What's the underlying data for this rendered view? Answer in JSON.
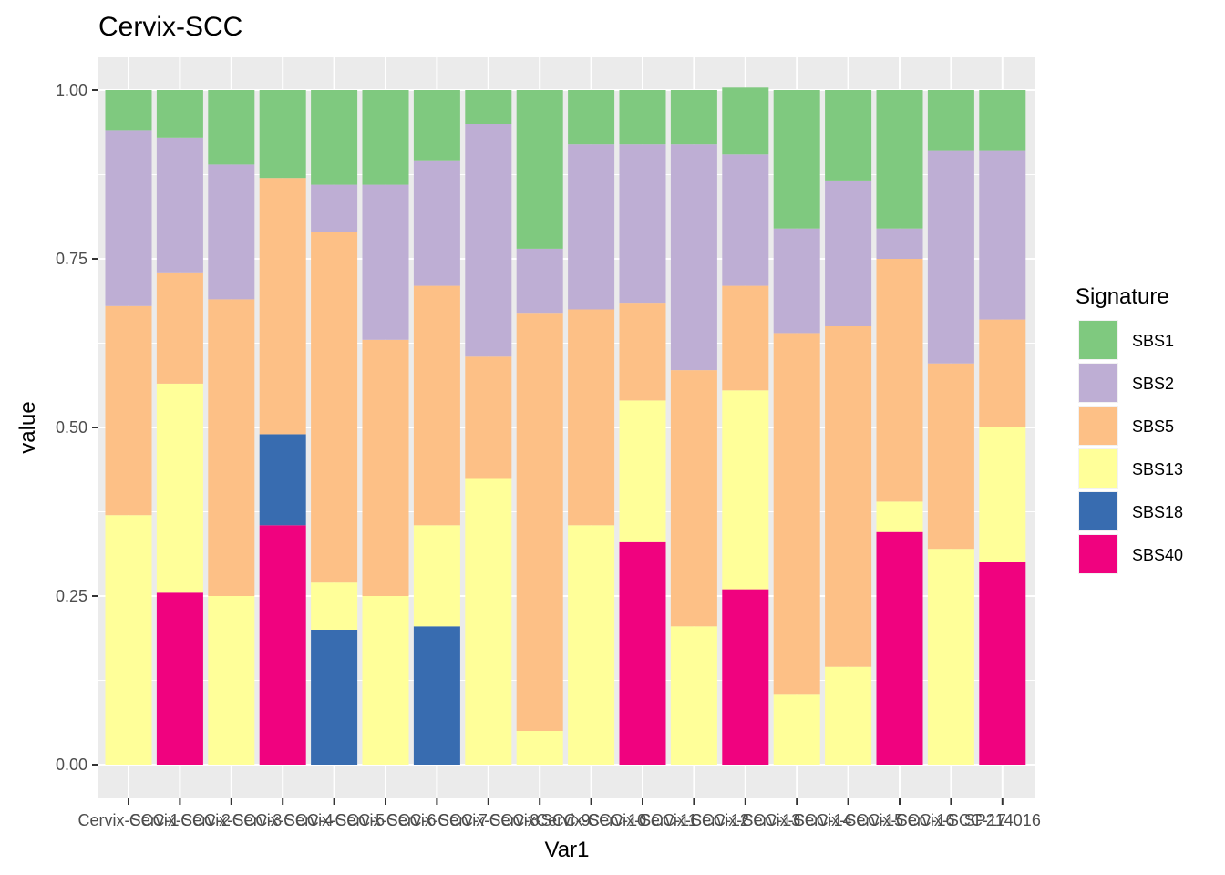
{
  "chart_data": {
    "type": "bar",
    "stacked": true,
    "title": "Cervix-SCC",
    "xlabel": "Var1",
    "ylabel": "value",
    "ylim": [
      0,
      1
    ],
    "yticks": [
      "0.00",
      "0.25",
      "0.50",
      "0.75",
      "1.00"
    ],
    "grid": true,
    "legend": {
      "title": "Signature",
      "placement": "right",
      "entries": [
        "SBS1",
        "SBS2",
        "SBS5",
        "SBS13",
        "SBS18",
        "SBS40"
      ]
    },
    "categories": [
      "Cervix-SCC-1",
      "Cervix-SCC-2",
      "Cervix-SCC-3",
      "Cervix-SCC-4",
      "Cervix-SCC-5",
      "Cervix-SCC-6",
      "Cervix-SCC-7",
      "Cervix-SCC-8",
      "Cervix-SCC-9",
      "Cervix-SCC-10",
      "Cervix-SCC-11",
      "Cervix-SCC-12",
      "Cervix-SCC-13",
      "Cervix-SCC-14",
      "Cervix-SCC-15",
      "Cervix-SCC-16",
      "Cervix-SCC-17",
      "SP214016"
    ],
    "stack_order": [
      "SBS40",
      "SBS18",
      "SBS13",
      "SBS5",
      "SBS2",
      "SBS1"
    ],
    "series": [
      {
        "name": "SBS1",
        "color": "#7FC97F",
        "values": [
          0.06,
          0.07,
          0.11,
          0.13,
          0.14,
          0.14,
          0.105,
          0.05,
          0.235,
          0.08,
          0.08,
          0.08,
          0.1,
          0.205,
          0.135,
          0.205,
          0.09,
          0.09
        ]
      },
      {
        "name": "SBS2",
        "color": "#BEAED4",
        "values": [
          0.26,
          0.2,
          0.2,
          0.0,
          0.07,
          0.23,
          0.185,
          0.345,
          0.095,
          0.245,
          0.235,
          0.335,
          0.195,
          0.155,
          0.215,
          0.045,
          0.315,
          0.25
        ]
      },
      {
        "name": "SBS5",
        "color": "#FDC086",
        "values": [
          0.31,
          0.165,
          0.44,
          0.38,
          0.52,
          0.38,
          0.355,
          0.18,
          0.62,
          0.32,
          0.145,
          0.38,
          0.155,
          0.535,
          0.505,
          0.36,
          0.275,
          0.16
        ]
      },
      {
        "name": "SBS13",
        "color": "#FFFF99",
        "values": [
          0.37,
          0.31,
          0.25,
          0.0,
          0.07,
          0.25,
          0.15,
          0.425,
          0.05,
          0.355,
          0.21,
          0.205,
          0.295,
          0.105,
          0.145,
          0.045,
          0.32,
          0.2
        ]
      },
      {
        "name": "SBS18",
        "color": "#386CB0",
        "values": [
          0.0,
          0.0,
          0.0,
          0.135,
          0.2,
          0.0,
          0.205,
          0.0,
          0.0,
          0.0,
          0.0,
          0.0,
          0.0,
          0.0,
          0.0,
          0.0,
          0.0,
          0.0
        ]
      },
      {
        "name": "SBS40",
        "color": "#F0027F",
        "values": [
          0.0,
          0.255,
          0.0,
          0.355,
          0.0,
          0.0,
          0.0,
          0.0,
          0.0,
          0.0,
          0.33,
          0.0,
          0.26,
          0.0,
          0.0,
          0.345,
          0.0,
          0.3
        ]
      }
    ]
  }
}
